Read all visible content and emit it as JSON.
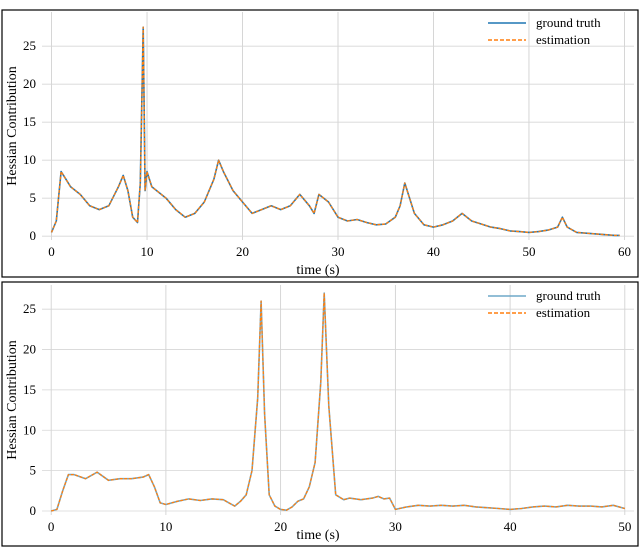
{
  "chart_data": [
    {
      "type": "line",
      "xlabel": "time (s)",
      "ylabel": "Hessian Contribution",
      "xlim": [
        -1,
        61
      ],
      "ylim": [
        -0.5,
        29.5
      ],
      "xticks": [
        "0",
        "10",
        "20",
        "30",
        "40",
        "50",
        "60"
      ],
      "yticks": [
        "0",
        "5",
        "10",
        "15",
        "20",
        "25"
      ],
      "grid": true,
      "legend_position": "top-right",
      "series": [
        {
          "name": "ground truth",
          "color": "#1f77b4",
          "style": "solid",
          "x": [
            0,
            0.5,
            1,
            1.5,
            2,
            3,
            4,
            5,
            6,
            7,
            7.5,
            8,
            8.5,
            9,
            9.3,
            9.6,
            9.8,
            10,
            10.5,
            11,
            12,
            13,
            14,
            15,
            16,
            17,
            17.5,
            18,
            19,
            20,
            21,
            22,
            23,
            24,
            25,
            26,
            27,
            27.5,
            28,
            29,
            30,
            31,
            32,
            33,
            34,
            35,
            36,
            36.5,
            37,
            38,
            39,
            40,
            41,
            42,
            43,
            44,
            45,
            46,
            47,
            48,
            49,
            50,
            51,
            52,
            53,
            53.5,
            54,
            55,
            56,
            57,
            58,
            59,
            59.5
          ],
          "y": [
            0.5,
            2,
            8.5,
            7.5,
            6.5,
            5.5,
            4,
            3.5,
            4,
            6.5,
            8,
            6,
            2.5,
            1.8,
            7,
            27.5,
            6,
            8.5,
            6.5,
            6,
            5,
            3.5,
            2.5,
            3,
            4.5,
            7.5,
            10,
            8.5,
            6,
            4.5,
            3,
            3.5,
            4,
            3.5,
            4,
            5.5,
            4,
            3,
            5.5,
            4.5,
            2.5,
            2,
            2.2,
            1.8,
            1.5,
            1.6,
            2.5,
            4,
            7,
            3,
            1.5,
            1.2,
            1.5,
            2,
            3,
            2,
            1.6,
            1.2,
            1,
            0.7,
            0.6,
            0.5,
            0.6,
            0.8,
            1.2,
            2.5,
            1.2,
            0.5,
            0.4,
            0.3,
            0.2,
            0.1,
            0.1
          ]
        },
        {
          "name": "estimation",
          "color": "#ff7f0e",
          "style": "dashed",
          "x": [
            0,
            0.5,
            1,
            1.5,
            2,
            3,
            4,
            5,
            6,
            7,
            7.5,
            8,
            8.5,
            9,
            9.3,
            9.6,
            9.8,
            10,
            10.5,
            11,
            12,
            13,
            14,
            15,
            16,
            17,
            17.5,
            18,
            19,
            20,
            21,
            22,
            23,
            24,
            25,
            26,
            27,
            27.5,
            28,
            29,
            30,
            31,
            32,
            33,
            34,
            35,
            36,
            36.5,
            37,
            38,
            39,
            40,
            41,
            42,
            43,
            44,
            45,
            46,
            47,
            48,
            49,
            50,
            51,
            52,
            53,
            53.5,
            54,
            55,
            56,
            57,
            58,
            59,
            59.5
          ],
          "y": [
            0.5,
            2,
            8.5,
            7.5,
            6.5,
            5.5,
            4,
            3.5,
            4,
            6.5,
            8,
            6,
            2.5,
            1.8,
            7,
            27.5,
            6,
            8.5,
            6.5,
            6,
            5,
            3.5,
            2.5,
            3,
            4.5,
            7.5,
            10,
            8.5,
            6,
            4.5,
            3,
            3.5,
            4,
            3.5,
            4,
            5.5,
            4,
            3,
            5.5,
            4.5,
            2.5,
            2,
            2.2,
            1.8,
            1.5,
            1.6,
            2.5,
            4,
            7,
            3,
            1.5,
            1.2,
            1.5,
            2,
            3,
            2,
            1.6,
            1.2,
            1,
            0.7,
            0.6,
            0.5,
            0.6,
            0.8,
            1.2,
            2.5,
            1.2,
            0.5,
            0.4,
            0.3,
            0.2,
            0.1,
            0.1
          ]
        }
      ]
    },
    {
      "type": "line",
      "xlabel": "time (s)",
      "ylabel": "Hessian Contribution",
      "xlim": [
        -0.8,
        50.8
      ],
      "ylim": [
        -0.5,
        28
      ],
      "xticks": [
        "0",
        "10",
        "20",
        "30",
        "40",
        "50"
      ],
      "yticks": [
        "0",
        "5",
        "10",
        "15",
        "20",
        "25"
      ],
      "grid": true,
      "legend_position": "top-right",
      "series": [
        {
          "name": "ground truth",
          "color": "#6fa8c8",
          "style": "solid",
          "x": [
            0,
            0.5,
            1,
            1.5,
            2,
            3,
            4,
            5,
            6,
            7,
            8,
            8.5,
            9,
            9.5,
            10,
            11,
            12,
            13,
            14,
            15,
            15.5,
            16,
            16.5,
            17,
            17.5,
            18,
            18.3,
            18.6,
            19,
            19.5,
            20,
            20.5,
            21,
            21.5,
            22,
            22.5,
            23,
            23.5,
            23.8,
            24.2,
            24.8,
            25.5,
            26,
            27,
            28,
            28.5,
            29,
            29.5,
            30,
            31,
            32,
            33,
            34,
            35,
            36,
            37,
            38,
            39,
            40,
            41,
            42,
            43,
            44,
            45,
            46,
            47,
            48,
            49,
            50
          ],
          "y": [
            0,
            0.2,
            2.5,
            4.5,
            4.5,
            4,
            4.8,
            3.8,
            4,
            4,
            4.2,
            4.5,
            3,
            1,
            0.8,
            1.2,
            1.5,
            1.3,
            1.5,
            1.4,
            1,
            0.6,
            1.2,
            2,
            5,
            14,
            26,
            12,
            2,
            0.6,
            0.2,
            0.1,
            0.5,
            1.2,
            1.5,
            3,
            6,
            16,
            27,
            13,
            2,
            1.4,
            1.6,
            1.4,
            1.6,
            1.8,
            1.5,
            1.6,
            0.2,
            0.5,
            0.7,
            0.6,
            0.7,
            0.6,
            0.7,
            0.5,
            0.4,
            0.3,
            0.2,
            0.3,
            0.5,
            0.6,
            0.5,
            0.7,
            0.6,
            0.6,
            0.5,
            0.7,
            0.3
          ]
        },
        {
          "name": "estimation",
          "color": "#ff7f0e",
          "style": "dashed",
          "x": [
            0,
            0.5,
            1,
            1.5,
            2,
            3,
            4,
            5,
            6,
            7,
            8,
            8.5,
            9,
            9.5,
            10,
            11,
            12,
            13,
            14,
            15,
            15.5,
            16,
            16.5,
            17,
            17.5,
            18,
            18.3,
            18.6,
            19,
            19.5,
            20,
            20.5,
            21,
            21.5,
            22,
            22.5,
            23,
            23.5,
            23.8,
            24.2,
            24.8,
            25.5,
            26,
            27,
            28,
            28.5,
            29,
            29.5,
            30,
            31,
            32,
            33,
            34,
            35,
            36,
            37,
            38,
            39,
            40,
            41,
            42,
            43,
            44,
            45,
            46,
            47,
            48,
            49,
            50
          ],
          "y": [
            0,
            0.2,
            2.5,
            4.5,
            4.5,
            4,
            4.8,
            3.8,
            4,
            4,
            4.2,
            4.5,
            3,
            1,
            0.8,
            1.2,
            1.5,
            1.3,
            1.5,
            1.4,
            1,
            0.6,
            1.2,
            2,
            5,
            14,
            26,
            12,
            2,
            0.6,
            0.2,
            0.1,
            0.5,
            1.2,
            1.5,
            3,
            6,
            16,
            27,
            13,
            2,
            1.4,
            1.6,
            1.4,
            1.6,
            1.8,
            1.5,
            1.6,
            0.2,
            0.5,
            0.7,
            0.6,
            0.7,
            0.6,
            0.7,
            0.5,
            0.4,
            0.3,
            0.2,
            0.3,
            0.5,
            0.6,
            0.5,
            0.7,
            0.6,
            0.6,
            0.5,
            0.7,
            0.3
          ]
        }
      ]
    }
  ]
}
